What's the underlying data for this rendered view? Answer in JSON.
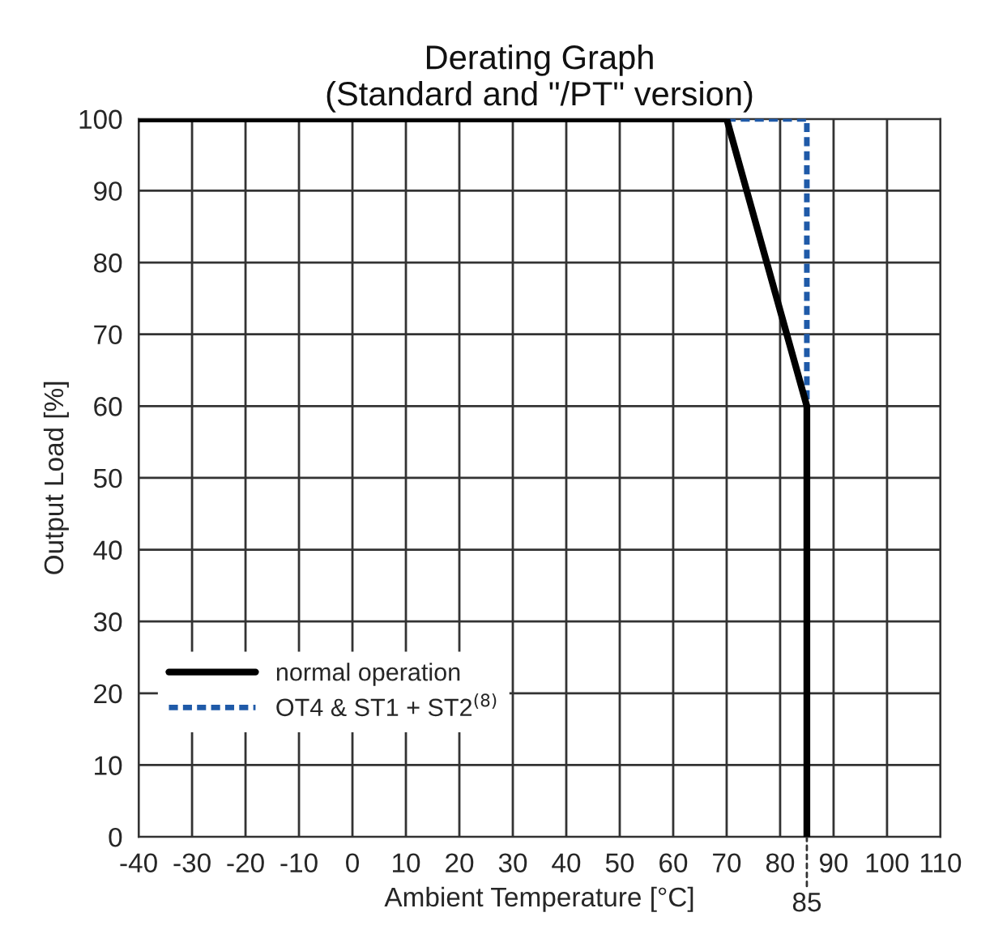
{
  "chart_data": {
    "type": "line",
    "title": "Derating Graph\n(Standard and \"/PT\" version)",
    "xlabel": "Ambient Temperature [°C]",
    "ylabel": "Output Load [%]",
    "series": [
      {
        "name": "normal operation",
        "color": "#000000",
        "x": [
          -40,
          70,
          85,
          85
        ],
        "values": [
          100,
          100,
          60,
          0
        ],
        "line_style": "solid"
      },
      {
        "name": "OT4 & ST1 + ST2$^{(8)}$",
        "color": "#1f5aa8",
        "x": [
          70,
          85,
          85
        ],
        "values": [
          100,
          100,
          60
        ],
        "line_style": "dashed"
      }
    ],
    "xlim": [
      -40,
      110
    ],
    "ylim": [
      0,
      100
    ],
    "xticks": [
      -40,
      -30,
      -20,
      -10,
      0,
      10,
      20,
      30,
      40,
      50,
      60,
      70,
      80,
      90,
      100,
      110
    ],
    "annotations": [
      {
        "text": "85",
        "x": 85,
        "y": 0
      }
    ],
    "yticks": [
      0,
      10,
      20,
      30,
      40,
      50,
      60,
      70,
      80,
      90,
      100
    ],
    "grid": true,
    "legend": "bottom left",
    "marker": "none"
  }
}
